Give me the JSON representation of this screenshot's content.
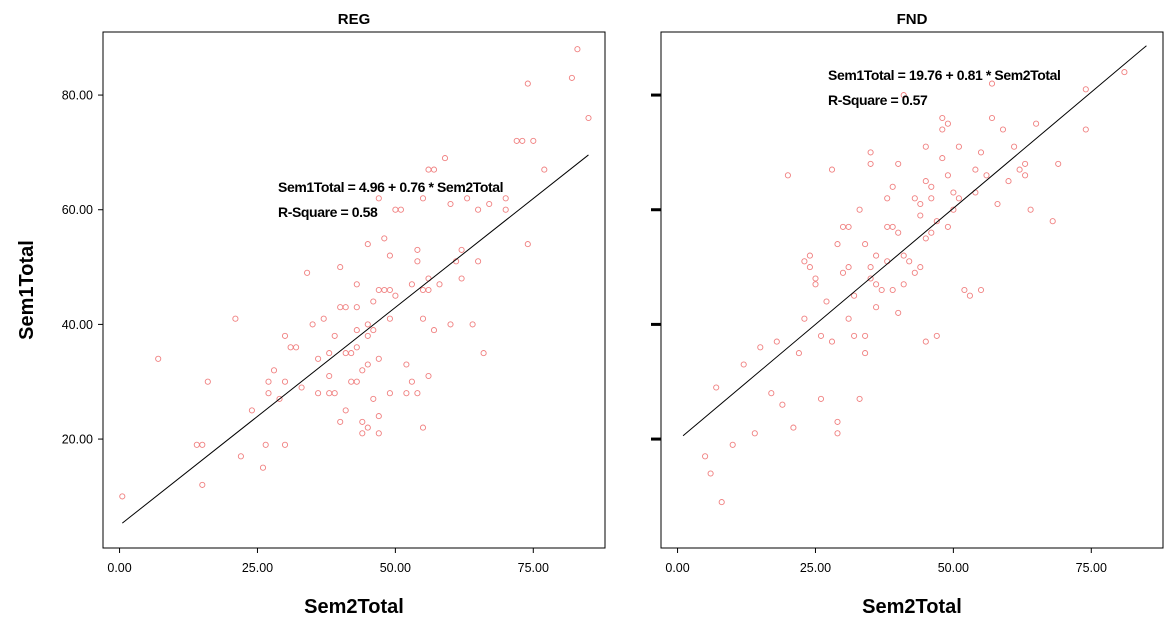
{
  "y_axis_title": "Sem1Total",
  "chart_data": [
    {
      "type": "scatter",
      "title": "REG",
      "xlabel": "Sem2Total",
      "ylabel": "Sem1Total",
      "xlim": [
        -3,
        88
      ],
      "ylim": [
        1,
        91
      ],
      "x_ticks": [
        "0.00",
        "25.00",
        "50.00",
        "75.00"
      ],
      "y_ticks": [
        "20.00",
        "40.00",
        "60.00",
        "80.00"
      ],
      "grid": false,
      "point_color": "#f08080",
      "line_color": "#000000",
      "fit": {
        "intercept": 4.96,
        "slope": 0.76,
        "x_range": [
          0.5,
          85
        ]
      },
      "annotation": [
        "Sem1Total = 4.96 + 0.76 * Sem2Total",
        "R-Square = 0.58"
      ],
      "points": [
        [
          0.5,
          10
        ],
        [
          7,
          34
        ],
        [
          14,
          19
        ],
        [
          15,
          19
        ],
        [
          15,
          12
        ],
        [
          16,
          30
        ],
        [
          21,
          41
        ],
        [
          22,
          17
        ],
        [
          24,
          25
        ],
        [
          26,
          15
        ],
        [
          26.5,
          19
        ],
        [
          27,
          28
        ],
        [
          27,
          30
        ],
        [
          28,
          32
        ],
        [
          29,
          27
        ],
        [
          30,
          19
        ],
        [
          30,
          30
        ],
        [
          30,
          38
        ],
        [
          31,
          36
        ],
        [
          32,
          36
        ],
        [
          33,
          29
        ],
        [
          34,
          49
        ],
        [
          35,
          40
        ],
        [
          36,
          28
        ],
        [
          36,
          34
        ],
        [
          37,
          41
        ],
        [
          38,
          28
        ],
        [
          38,
          31
        ],
        [
          38,
          35
        ],
        [
          39,
          28
        ],
        [
          39,
          38
        ],
        [
          40,
          43
        ],
        [
          40,
          50
        ],
        [
          40,
          23
        ],
        [
          41,
          25
        ],
        [
          41,
          35
        ],
        [
          41,
          43
        ],
        [
          42,
          30
        ],
        [
          42,
          35
        ],
        [
          43,
          30
        ],
        [
          43,
          36
        ],
        [
          43,
          39
        ],
        [
          43,
          43
        ],
        [
          43,
          47
        ],
        [
          44,
          21
        ],
        [
          44,
          23
        ],
        [
          44,
          32
        ],
        [
          45,
          22
        ],
        [
          45,
          33
        ],
        [
          45,
          38
        ],
        [
          45,
          40
        ],
        [
          45,
          54
        ],
        [
          46,
          27
        ],
        [
          46,
          39
        ],
        [
          46,
          44
        ],
        [
          47,
          21
        ],
        [
          47,
          24
        ],
        [
          47,
          34
        ],
        [
          47,
          46
        ],
        [
          47,
          62
        ],
        [
          48,
          46
        ],
        [
          48,
          55
        ],
        [
          49,
          28
        ],
        [
          49,
          41
        ],
        [
          49,
          46
        ],
        [
          49,
          52
        ],
        [
          50,
          45
        ],
        [
          50,
          60
        ],
        [
          51,
          60
        ],
        [
          52,
          28
        ],
        [
          52,
          33
        ],
        [
          53,
          30
        ],
        [
          53,
          47
        ],
        [
          54,
          51
        ],
        [
          54,
          53
        ],
        [
          54,
          28
        ],
        [
          55,
          22
        ],
        [
          55,
          41
        ],
        [
          55,
          46
        ],
        [
          55,
          62
        ],
        [
          56,
          31
        ],
        [
          56,
          46
        ],
        [
          56,
          48
        ],
        [
          56,
          67
        ],
        [
          57,
          39
        ],
        [
          57,
          67
        ],
        [
          58,
          47
        ],
        [
          59,
          69
        ],
        [
          60,
          40
        ],
        [
          60,
          61
        ],
        [
          61,
          51
        ],
        [
          62,
          48
        ],
        [
          62,
          53
        ],
        [
          63,
          62
        ],
        [
          64,
          40
        ],
        [
          65,
          51
        ],
        [
          65,
          60
        ],
        [
          66,
          35
        ],
        [
          67,
          61
        ],
        [
          70,
          62
        ],
        [
          70,
          60
        ],
        [
          72,
          72
        ],
        [
          73,
          72
        ],
        [
          74,
          54
        ],
        [
          74,
          82
        ],
        [
          75,
          72
        ],
        [
          77,
          67
        ],
        [
          82,
          83
        ],
        [
          83,
          88
        ],
        [
          85,
          76
        ]
      ]
    },
    {
      "type": "scatter",
      "title": "FND",
      "xlabel": "Sem2Total",
      "ylabel": "Sem1Total",
      "xlim": [
        -3,
        88
      ],
      "ylim": [
        1,
        91
      ],
      "x_ticks": [
        "0.00",
        "25.00",
        "50.00",
        "75.00"
      ],
      "y_ticks": [
        "20.00",
        "40.00",
        "60.00",
        "80.00"
      ],
      "grid": false,
      "point_color": "#f08080",
      "line_color": "#000000",
      "fit": {
        "intercept": 19.76,
        "slope": 0.81,
        "x_range": [
          1,
          85
        ]
      },
      "annotation": [
        "Sem1Total = 19.76 + 0.81 * Sem2Total",
        "R-Square = 0.57"
      ],
      "points": [
        [
          5,
          17
        ],
        [
          6,
          14
        ],
        [
          7,
          29
        ],
        [
          8,
          9
        ],
        [
          10,
          19
        ],
        [
          12,
          33
        ],
        [
          14,
          21
        ],
        [
          15,
          36
        ],
        [
          17,
          28
        ],
        [
          18,
          37
        ],
        [
          19,
          26
        ],
        [
          20,
          66
        ],
        [
          21,
          22
        ],
        [
          22,
          35
        ],
        [
          23,
          41
        ],
        [
          23,
          51
        ],
        [
          24,
          50
        ],
        [
          24,
          52
        ],
        [
          25,
          47
        ],
        [
          25,
          48
        ],
        [
          26,
          38
        ],
        [
          26,
          27
        ],
        [
          27,
          44
        ],
        [
          28,
          67
        ],
        [
          28,
          37
        ],
        [
          29,
          23
        ],
        [
          29,
          21
        ],
        [
          29,
          54
        ],
        [
          30,
          57
        ],
        [
          30,
          49
        ],
        [
          31,
          41
        ],
        [
          31,
          50
        ],
        [
          31,
          57
        ],
        [
          32,
          38
        ],
        [
          32,
          45
        ],
        [
          33,
          60
        ],
        [
          33,
          27
        ],
        [
          34,
          35
        ],
        [
          34,
          38
        ],
        [
          34,
          54
        ],
        [
          35,
          48
        ],
        [
          35,
          50
        ],
        [
          35,
          68
        ],
        [
          35,
          70
        ],
        [
          36,
          43
        ],
        [
          36,
          47
        ],
        [
          36,
          52
        ],
        [
          37,
          46
        ],
        [
          38,
          51
        ],
        [
          38,
          57
        ],
        [
          38,
          62
        ],
        [
          39,
          57
        ],
        [
          39,
          46
        ],
        [
          39,
          64
        ],
        [
          40,
          42
        ],
        [
          40,
          56
        ],
        [
          40,
          68
        ],
        [
          41,
          47
        ],
        [
          41,
          52
        ],
        [
          41,
          80
        ],
        [
          42,
          51
        ],
        [
          43,
          49
        ],
        [
          43,
          62
        ],
        [
          44,
          50
        ],
        [
          44,
          59
        ],
        [
          44,
          61
        ],
        [
          45,
          55
        ],
        [
          45,
          65
        ],
        [
          45,
          71
        ],
        [
          45,
          37
        ],
        [
          46,
          56
        ],
        [
          46,
          62
        ],
        [
          46,
          64
        ],
        [
          47,
          38
        ],
        [
          47,
          58
        ],
        [
          48,
          69
        ],
        [
          48,
          74
        ],
        [
          48,
          76
        ],
        [
          49,
          57
        ],
        [
          49,
          66
        ],
        [
          49,
          75
        ],
        [
          50,
          60
        ],
        [
          50,
          63
        ],
        [
          51,
          71
        ],
        [
          51,
          62
        ],
        [
          52,
          46
        ],
        [
          53,
          45
        ],
        [
          54,
          63
        ],
        [
          54,
          67
        ],
        [
          55,
          46
        ],
        [
          55,
          70
        ],
        [
          56,
          66
        ],
        [
          57,
          76
        ],
        [
          57,
          82
        ],
        [
          58,
          61
        ],
        [
          59,
          74
        ],
        [
          60,
          65
        ],
        [
          61,
          71
        ],
        [
          62,
          67
        ],
        [
          63,
          66
        ],
        [
          63,
          68
        ],
        [
          64,
          60
        ],
        [
          65,
          75
        ],
        [
          68,
          58
        ],
        [
          69,
          68
        ],
        [
          74,
          74
        ],
        [
          74,
          81
        ],
        [
          81,
          84
        ]
      ]
    }
  ]
}
